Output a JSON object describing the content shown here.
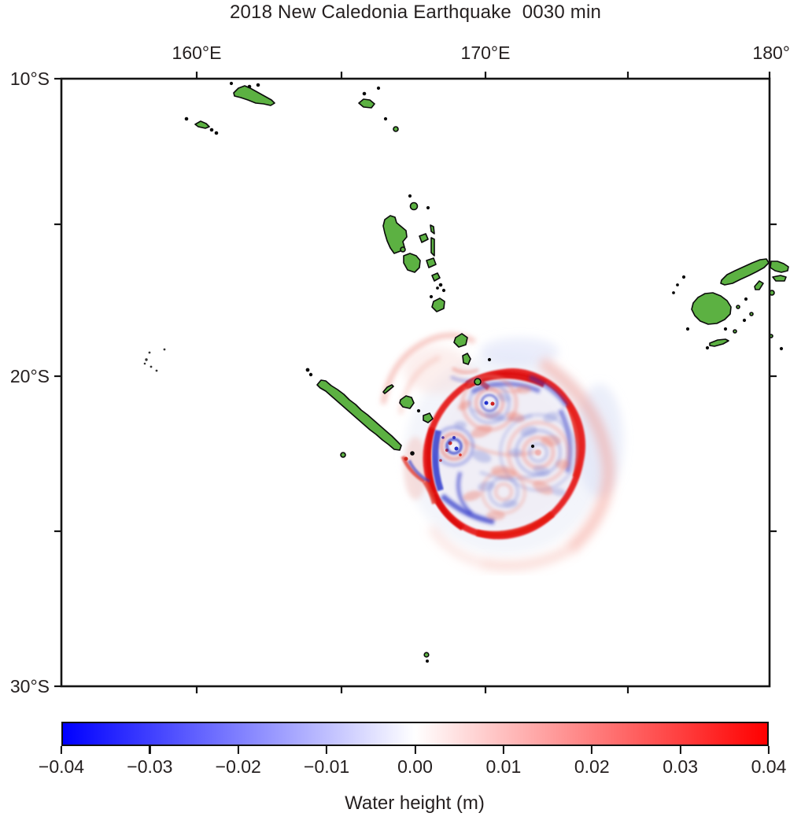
{
  "title": "2018 New Caledonia Earthquake  0030 min",
  "map": {
    "top_axis_ticks": [
      "160°E",
      "170°E",
      "180°"
    ],
    "left_axis_ticks": [
      "10°S",
      "20°S",
      "30°S"
    ],
    "land_color": "#5cb142",
    "coast_color": "#0a0a0a",
    "frame_color": "#141414"
  },
  "wave_field": {
    "positive_color": "#e61212",
    "negative_color": "#2030cf"
  },
  "colorbar": {
    "label": "Water height (m)",
    "tick_labels": [
      "−0.04",
      "−0.03",
      "−0.02",
      "−0.01",
      "0.00",
      "0.01",
      "0.02",
      "0.03",
      "0.04"
    ],
    "min": -0.04,
    "max": 0.04,
    "min_color": "#0000ff",
    "mid_color": "#ffffff",
    "max_color": "#ff0000"
  }
}
